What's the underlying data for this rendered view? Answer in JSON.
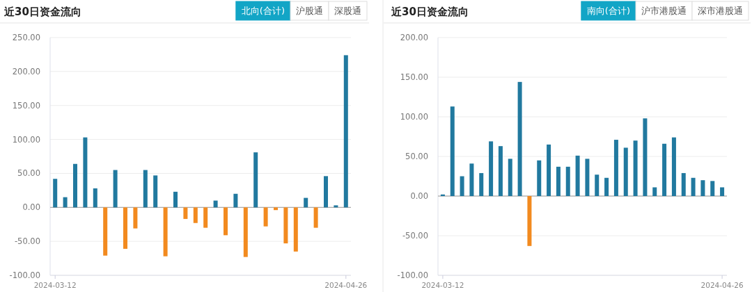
{
  "chart_data": [
    {
      "type": "bar",
      "title": "近30日资金流向",
      "subtitle": "北向(合计)",
      "annotations": [
        "沪股通",
        "深股通"
      ],
      "grid": "y",
      "categories": [
        "2024-03-12",
        null,
        null,
        null,
        null,
        null,
        null,
        null,
        null,
        null,
        null,
        null,
        null,
        null,
        null,
        null,
        null,
        null,
        null,
        null,
        null,
        null,
        null,
        null,
        null,
        null,
        null,
        null,
        null,
        "2024-04-26"
      ],
      "values": [
        42,
        15,
        64,
        103,
        28,
        -71,
        55,
        -61,
        -31,
        55,
        47,
        -72,
        23,
        -17,
        -23,
        -30,
        10,
        -41,
        20,
        -73,
        81,
        -28,
        -4,
        -53,
        -65,
        14,
        -30,
        46,
        3,
        224
      ],
      "colors": [
        "#21799f",
        "#21799f",
        "#21799f",
        "#21799f",
        "#21799f",
        "#f28a1f",
        "#21799f",
        "#f28a1f",
        "#f28a1f",
        "#21799f",
        "#21799f",
        "#f28a1f",
        "#21799f",
        "#f28a1f",
        "#f28a1f",
        "#f28a1f",
        "#21799f",
        "#f28a1f",
        "#21799f",
        "#f28a1f",
        "#21799f",
        "#f28a1f",
        "#f28a1f",
        "#f28a1f",
        "#f28a1f",
        "#21799f",
        "#f28a1f",
        "#21799f",
        "#21799f",
        "#21799f"
      ],
      "ylim": [
        -100,
        250
      ],
      "yticks": [
        {
          "value": -100,
          "label": "-100.00"
        },
        {
          "value": -50,
          "label": "-50.00"
        },
        {
          "value": 0,
          "label": "0.00"
        },
        {
          "value": 50,
          "label": "50.00"
        },
        {
          "value": 100,
          "label": "100.00"
        },
        {
          "value": 150,
          "label": "150.00"
        },
        {
          "value": 200,
          "label": "200.00"
        },
        {
          "value": 250,
          "label": "250.00"
        }
      ]
    },
    {
      "type": "bar",
      "title": "近30日资金流向",
      "subtitle": "南向(合计)",
      "annotations": [
        "沪市港股通",
        "深市港股通"
      ],
      "grid": "y",
      "categories": [
        "2024-03-12",
        null,
        null,
        null,
        null,
        null,
        null,
        null,
        null,
        null,
        null,
        null,
        null,
        null,
        null,
        null,
        null,
        null,
        null,
        null,
        null,
        null,
        null,
        null,
        null,
        null,
        null,
        null,
        null,
        "2024-04-26"
      ],
      "values": [
        2,
        113,
        25,
        41,
        29,
        69,
        63,
        47,
        144,
        -63,
        45,
        65,
        37,
        37,
        51,
        47,
        27,
        23,
        71,
        61,
        70,
        98,
        11,
        66,
        74,
        29,
        23,
        20,
        19,
        11
      ],
      "colors": [
        "#21799f",
        "#21799f",
        "#21799f",
        "#21799f",
        "#21799f",
        "#21799f",
        "#21799f",
        "#21799f",
        "#21799f",
        "#f28a1f",
        "#21799f",
        "#21799f",
        "#21799f",
        "#21799f",
        "#21799f",
        "#21799f",
        "#21799f",
        "#21799f",
        "#21799f",
        "#21799f",
        "#21799f",
        "#21799f",
        "#21799f",
        "#21799f",
        "#21799f",
        "#21799f",
        "#21799f",
        "#21799f",
        "#21799f",
        "#21799f"
      ],
      "ylim": [
        -100,
        200
      ],
      "yticks": [
        {
          "value": -100,
          "label": "-100.00"
        },
        {
          "value": -50,
          "label": "-50.00"
        },
        {
          "value": 0,
          "label": "0.00"
        },
        {
          "value": 50,
          "label": "50.00"
        },
        {
          "value": 100,
          "label": "100.00"
        },
        {
          "value": 150,
          "label": "150.00"
        },
        {
          "value": 200,
          "label": "200.00"
        }
      ]
    }
  ]
}
